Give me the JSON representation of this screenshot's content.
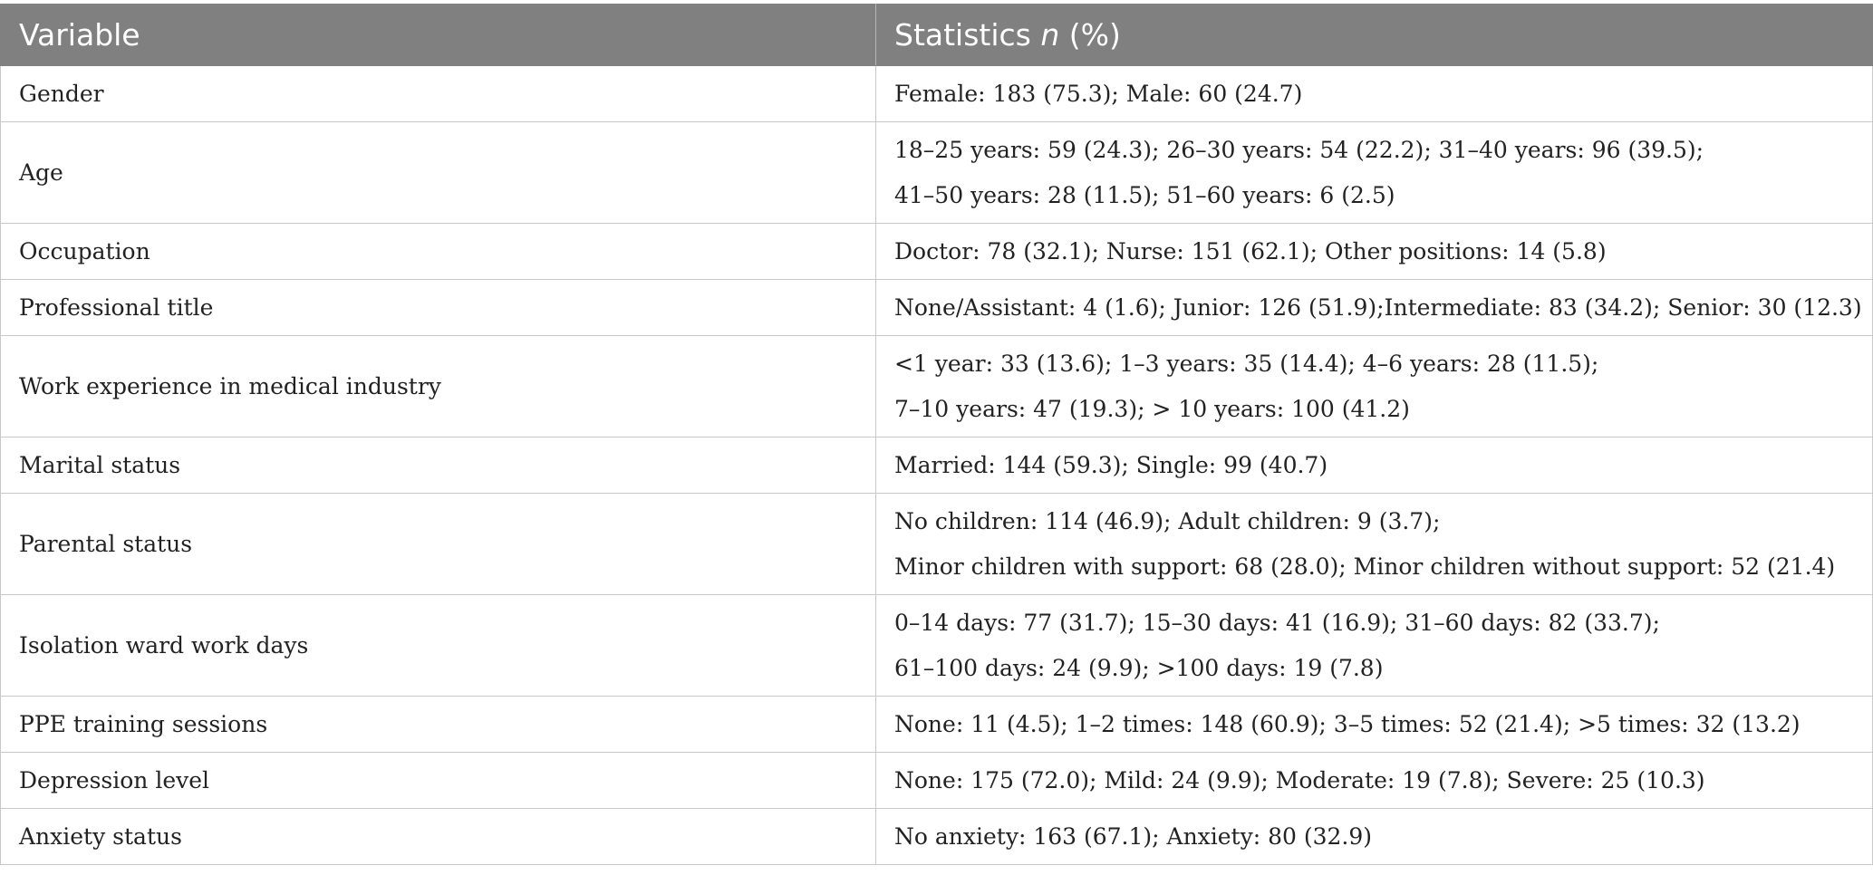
{
  "header": {
    "variable": "Variable",
    "statistics_prefix": "Statistics ",
    "statistics_italic": "n",
    "statistics_suffix": " (%)"
  },
  "rows": [
    {
      "variable": "Gender",
      "lines": [
        "Female: 183 (75.3); Male: 60 (24.7)"
      ]
    },
    {
      "variable": "Age",
      "lines": [
        "18–25 years: 59 (24.3); 26–30 years: 54 (22.2); 31–40 years: 96 (39.5);",
        "41–50 years: 28 (11.5); 51–60 years: 6 (2.5)"
      ]
    },
    {
      "variable": "Occupation",
      "lines": [
        "Doctor: 78 (32.1); Nurse: 151 (62.1); Other positions: 14 (5.8)"
      ]
    },
    {
      "variable": "Professional title",
      "lines": [
        "None/Assistant: 4 (1.6); Junior: 126 (51.9);Intermediate: 83 (34.2); Senior: 30 (12.3)"
      ]
    },
    {
      "variable": "Work experience in medical industry",
      "lines": [
        "<1 year: 33 (13.6); 1–3 years: 35 (14.4); 4–6 years: 28 (11.5);",
        "7–10 years: 47 (19.3); > 10 years: 100 (41.2)"
      ]
    },
    {
      "variable": "Marital status",
      "lines": [
        "Married: 144 (59.3); Single: 99 (40.7)"
      ]
    },
    {
      "variable": "Parental status",
      "lines": [
        "No children: 114 (46.9); Adult children: 9 (3.7);",
        "Minor children with support: 68 (28.0); Minor children without support: 52 (21.4)"
      ]
    },
    {
      "variable": "Isolation ward work days",
      "lines": [
        "0–14 days: 77 (31.7); 15–30 days: 41 (16.9); 31–60 days: 82 (33.7);",
        "61–100 days: 24 (9.9); >100 days: 19 (7.8)"
      ]
    },
    {
      "variable": "PPE training sessions",
      "lines": [
        "None: 11 (4.5); 1–2 times: 148 (60.9); 3–5 times: 52 (21.4); >5 times: 32 (13.2)"
      ]
    },
    {
      "variable": "Depression level",
      "lines": [
        "None: 175 (72.0); Mild: 24 (9.9); Moderate: 19 (7.8); Severe: 25 (10.3)"
      ]
    },
    {
      "variable": "Anxiety status",
      "lines": [
        "No anxiety: 163 (67.1); Anxiety: 80 (32.9)"
      ]
    }
  ]
}
